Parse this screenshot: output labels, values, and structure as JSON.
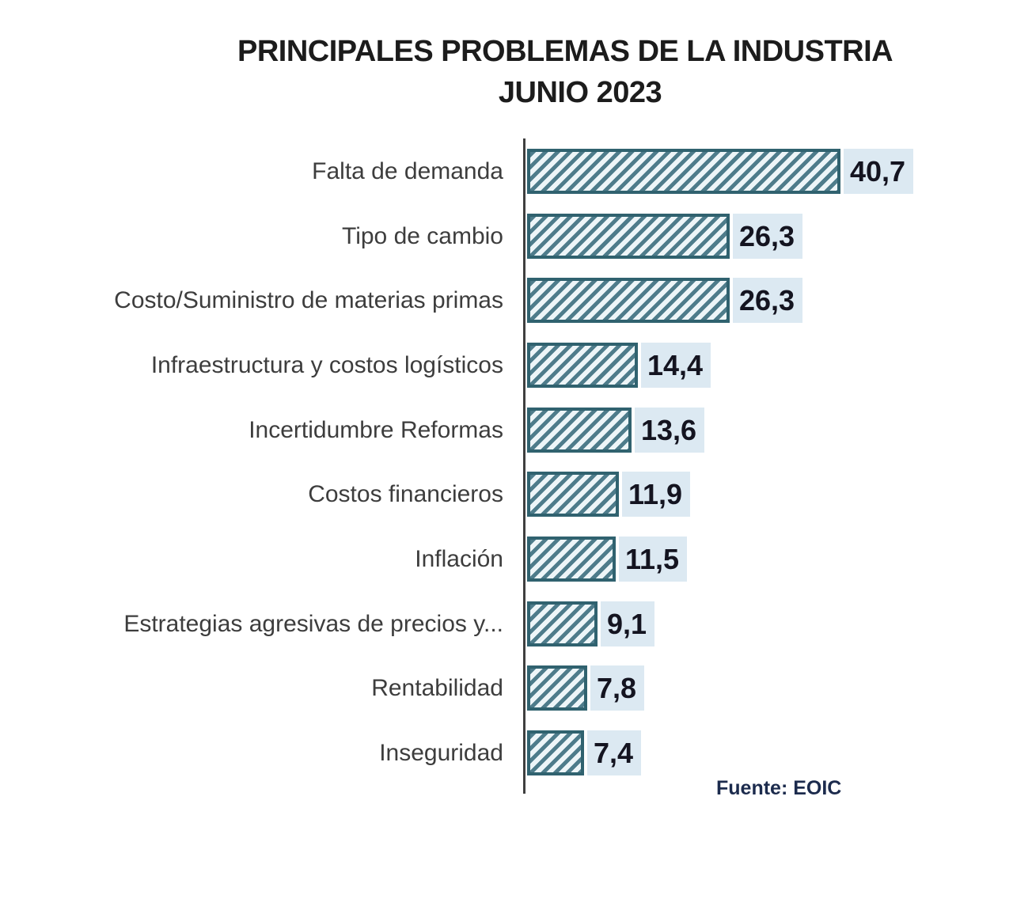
{
  "header": {
    "title_line1": "PRINCIPALES PROBLEMAS DE LA INDUSTRIA",
    "title_line2": "JUNIO 2023"
  },
  "source": {
    "label": "Fuente: EOIC"
  },
  "chart_data": {
    "type": "bar",
    "orientation": "horizontal",
    "title": "PRINCIPALES PROBLEMAS DE LA INDUSTRIA JUNIO 2023",
    "xlabel": "",
    "ylabel": "",
    "xlim": [
      0,
      45
    ],
    "grid": false,
    "legend": "none",
    "bar_style": "diagonal-hatch",
    "value_labels_shown": true,
    "categories": [
      "Falta de demanda",
      "Tipo de cambio",
      "Costo/Suministro de materias primas",
      "Infraestructura y costos logísticos",
      "Incertidumbre Reformas",
      "Costos financieros",
      "Inflación",
      "Estrategias agresivas de precios y...",
      "Rentabilidad",
      "Inseguridad"
    ],
    "values": [
      40.7,
      26.3,
      26.3,
      14.4,
      13.6,
      11.9,
      11.5,
      9.1,
      7.8,
      7.4
    ],
    "value_labels": [
      "40,7",
      "26,3",
      "26,3",
      "14,4",
      "13,6",
      "11,9",
      "11,5",
      "9,1",
      "7,8",
      "7,4"
    ],
    "colors": {
      "title_text": "#1c1c1c",
      "category_text": "#3d3d3d",
      "value_text": "#141420",
      "value_label_background": "#dce9f2",
      "bar_stripe": "#4e7c8b",
      "bar_background": "#edf5f8",
      "bar_border": "#30626f",
      "axis_line": "#3f3f3f",
      "source_text": "#1c2b4d",
      "page_background": "#ffffff"
    }
  }
}
